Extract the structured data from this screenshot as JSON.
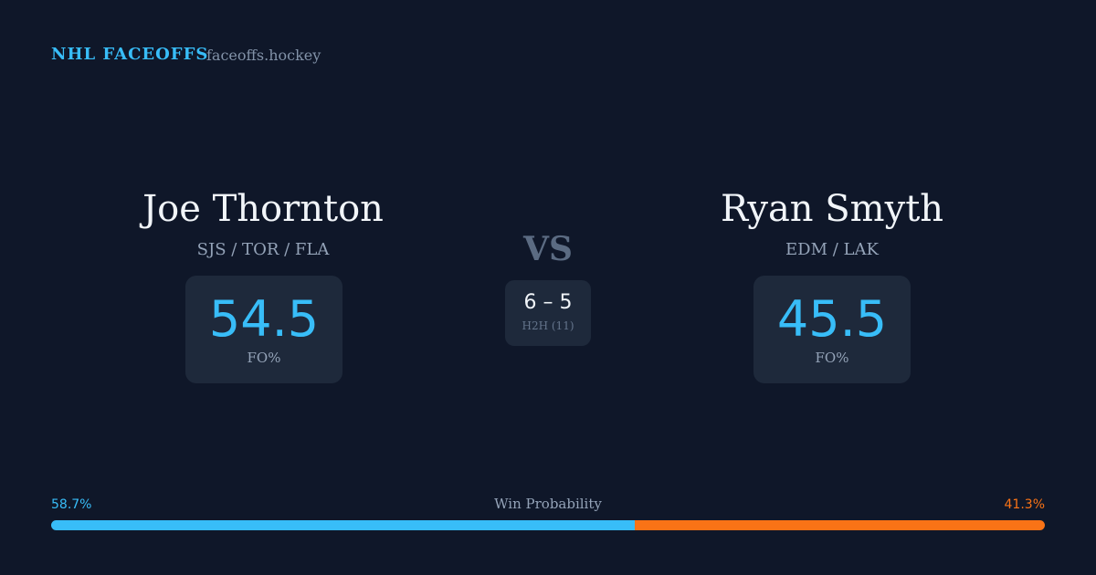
{
  "header": {
    "brand": "NHL FACEOFFS",
    "site": "faceoffs.hockey"
  },
  "vs": "VS",
  "players": [
    {
      "name": "Joe Thornton",
      "teams": "SJS / TOR / FLA",
      "fo_pct": 54.5,
      "fo_label": "FO%"
    },
    {
      "name": "Ryan Smyth",
      "teams": "EDM / LAK",
      "fo_pct": 45.5,
      "fo_label": "FO%"
    }
  ],
  "h2h": {
    "score": "6 – 5",
    "label": "H2H (11)"
  },
  "win_probability": {
    "title": "Win Probability",
    "segments": [
      {
        "value": 58.7,
        "label": "58.7%",
        "color": "#38bdf8"
      },
      {
        "value": 41.3,
        "label": "41.3%",
        "color": "#f97316"
      }
    ]
  }
}
